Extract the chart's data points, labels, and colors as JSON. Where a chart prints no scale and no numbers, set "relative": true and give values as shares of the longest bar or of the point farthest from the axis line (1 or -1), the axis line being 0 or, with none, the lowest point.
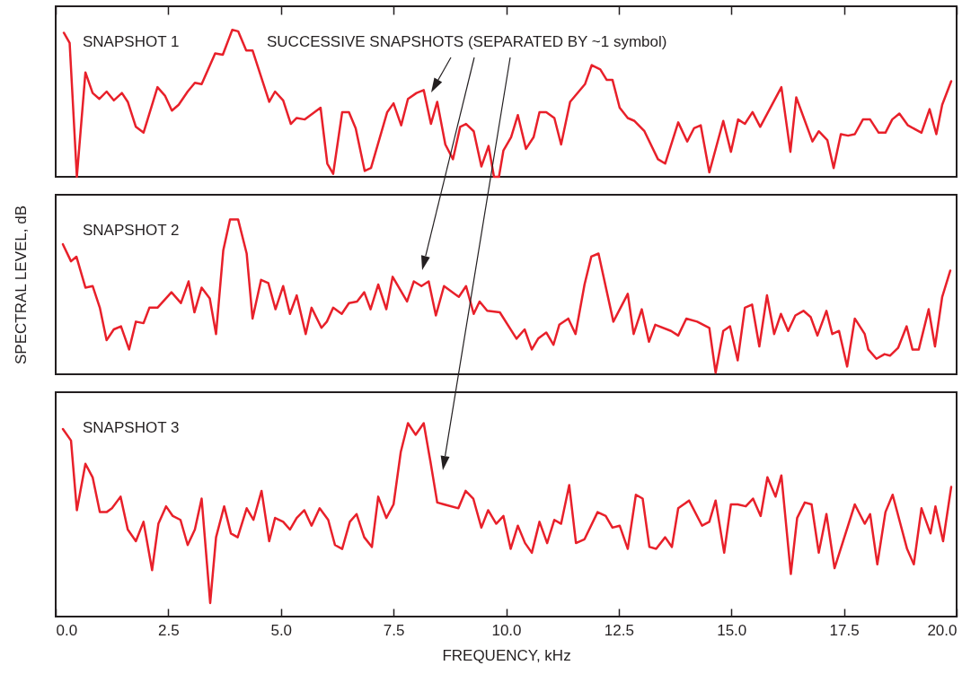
{
  "chart_data": [
    {
      "type": "line",
      "relative": true,
      "xlim": [
        0,
        20
      ],
      "xticks": [
        0,
        2.5,
        5,
        7.5,
        10,
        12.5,
        15,
        17.5,
        20
      ],
      "tick_labels": false,
      "annotations": [
        "SNAPSHOT 1",
        "SUCCESSIVE SNAPSHOTS (SEPARATED BY ~1 symbol)"
      ],
      "series": [
        {
          "color": "#e8202a",
          "x": [
            0.18,
            0.31,
            0.47,
            0.66,
            0.82,
            0.97,
            1.13,
            1.29,
            1.47,
            1.6,
            1.78,
            1.95,
            2.26,
            2.43,
            2.58,
            2.73,
            2.93,
            3.09,
            3.24,
            3.54,
            3.71,
            3.92,
            4.05,
            4.23,
            4.37,
            4.74,
            4.87,
            5.05,
            5.22,
            5.35,
            5.53,
            5.88,
            6.03,
            6.16,
            6.36,
            6.51,
            6.66,
            6.86,
            7.0,
            7.36,
            7.5,
            7.67,
            7.82,
            8.01,
            8.17,
            8.33,
            8.47,
            8.65,
            8.82,
            8.98,
            9.11,
            9.28,
            9.45,
            9.61,
            9.73,
            9.84,
            9.94,
            10.11,
            10.26,
            10.44,
            10.61,
            10.74,
            10.89,
            11.07,
            11.22,
            11.42,
            11.75,
            11.9,
            12.09,
            12.23,
            12.36,
            12.52,
            12.7,
            12.85,
            13.07,
            13.37,
            13.53,
            13.82,
            14.02,
            14.17,
            14.32,
            14.51,
            14.82,
            14.99,
            15.15,
            15.3,
            15.47,
            15.64,
            16.11,
            16.31,
            16.44,
            16.8,
            16.94,
            17.13,
            17.27,
            17.43,
            17.59,
            17.74,
            17.92,
            18.08,
            18.27,
            18.42,
            18.57,
            18.73,
            18.92,
            19.22,
            19.4,
            19.55,
            19.68,
            19.88
          ],
          "values": [
            0.98,
            0.91,
            0,
            0.71,
            0.57,
            0.53,
            0.58,
            0.52,
            0.57,
            0.51,
            0.34,
            0.3,
            0.61,
            0.55,
            0.45,
            0.49,
            0.58,
            0.64,
            0.63,
            0.84,
            0.83,
            1.0,
            0.99,
            0.86,
            0.86,
            0.51,
            0.58,
            0.52,
            0.36,
            0.4,
            0.39,
            0.47,
            0.09,
            0.02,
            0.44,
            0.44,
            0.33,
            0.04,
            0.06,
            0.44,
            0.5,
            0.35,
            0.53,
            0.57,
            0.59,
            0.36,
            0.51,
            0.22,
            0.12,
            0.34,
            0.36,
            0.31,
            0.07,
            0.21,
            0,
            0,
            0.18,
            0.27,
            0.42,
            0.19,
            0.27,
            0.44,
            0.44,
            0.4,
            0.22,
            0.51,
            0.63,
            0.76,
            0.73,
            0.66,
            0.66,
            0.47,
            0.4,
            0.38,
            0.31,
            0.12,
            0.09,
            0.37,
            0.24,
            0.33,
            0.35,
            0.03,
            0.38,
            0.17,
            0.39,
            0.36,
            0.44,
            0.34,
            0.61,
            0.17,
            0.54,
            0.24,
            0.31,
            0.25,
            0.06,
            0.29,
            0.28,
            0.29,
            0.39,
            0.39,
            0.3,
            0.3,
            0.39,
            0.43,
            0.35,
            0.3,
            0.46,
            0.29,
            0.49,
            0.65
          ]
        }
      ]
    },
    {
      "type": "line",
      "relative": true,
      "ylabel": "SPECTRAL LEVEL, dB",
      "xlim": [
        0,
        20
      ],
      "tick_labels": false,
      "annotations": [
        "SNAPSHOT 2"
      ],
      "series": [
        {
          "color": "#e8202a",
          "x": [
            0.16,
            0.34,
            0.46,
            0.66,
            0.82,
            0.98,
            1.13,
            1.29,
            1.45,
            1.63,
            1.78,
            1.95,
            2.08,
            2.26,
            2.57,
            2.78,
            2.95,
            3.08,
            3.24,
            3.42,
            3.56,
            3.72,
            3.87,
            4.05,
            4.24,
            4.37,
            4.56,
            4.72,
            4.88,
            5.05,
            5.2,
            5.35,
            5.55,
            5.68,
            5.9,
            6.02,
            6.16,
            6.35,
            6.51,
            6.69,
            6.85,
            6.99,
            7.16,
            7.34,
            7.48,
            7.8,
            7.95,
            8.12,
            8.28,
            8.44,
            8.62,
            8.95,
            9.11,
            9.28,
            9.41,
            9.58,
            9.86,
            10.23,
            10.41,
            10.57,
            10.71,
            10.89,
            11.05,
            11.18,
            11.38,
            11.54,
            11.74,
            11.89,
            12.05,
            12.38,
            12.7,
            12.83,
            13.01,
            13.17,
            13.31,
            13.66,
            13.82,
            14.0,
            14.24,
            14.51,
            14.65,
            14.82,
            14.97,
            15.14,
            15.3,
            15.46,
            15.62,
            15.79,
            15.95,
            16.1,
            16.26,
            16.42,
            16.6,
            16.76,
            16.91,
            17.11,
            17.24,
            17.39,
            17.57,
            17.74,
            17.96,
            18.04,
            18.22,
            18.4,
            18.52,
            18.7,
            18.89,
            19.02,
            19.16,
            19.38,
            19.52,
            19.68,
            19.86
          ],
          "values": [
            0.84,
            0.73,
            0.76,
            0.56,
            0.57,
            0.43,
            0.22,
            0.29,
            0.31,
            0.16,
            0.34,
            0.33,
            0.43,
            0.43,
            0.53,
            0.46,
            0.6,
            0.4,
            0.56,
            0.49,
            0.26,
            0.8,
            1.0,
            1.0,
            0.78,
            0.36,
            0.61,
            0.59,
            0.42,
            0.57,
            0.39,
            0.51,
            0.26,
            0.43,
            0.3,
            0.34,
            0.43,
            0.39,
            0.46,
            0.47,
            0.53,
            0.42,
            0.58,
            0.42,
            0.63,
            0.47,
            0.6,
            0.57,
            0.6,
            0.38,
            0.57,
            0.5,
            0.57,
            0.39,
            0.47,
            0.41,
            0.4,
            0.23,
            0.29,
            0.16,
            0.23,
            0.27,
            0.19,
            0.32,
            0.36,
            0.26,
            0.58,
            0.76,
            0.78,
            0.34,
            0.52,
            0.26,
            0.42,
            0.21,
            0.32,
            0.28,
            0.25,
            0.36,
            0.34,
            0.3,
            0.01,
            0.28,
            0.31,
            0.09,
            0.43,
            0.45,
            0.18,
            0.51,
            0.26,
            0.39,
            0.28,
            0.38,
            0.41,
            0.37,
            0.25,
            0.41,
            0.26,
            0.28,
            0.05,
            0.36,
            0.26,
            0.16,
            0.1,
            0.13,
            0.12,
            0.17,
            0.31,
            0.16,
            0.16,
            0.42,
            0.18,
            0.5,
            0.67
          ]
        }
      ]
    },
    {
      "type": "line",
      "relative": true,
      "xlabel": "FREQUENCY, kHz",
      "xlim": [
        0,
        20
      ],
      "xticks": [
        {
          "value": 0,
          "label": "0.0"
        },
        2.5,
        {
          "value": 5,
          "label": "5.0"
        },
        7.5,
        {
          "value": 10,
          "label": "10.0"
        },
        12.5,
        {
          "value": 15,
          "label": "15.0"
        },
        17.5,
        {
          "value": 20,
          "label": "20.0"
        }
      ],
      "tick_labels": "x",
      "annotations": [
        "SNAPSHOT 3"
      ],
      "series": [
        {
          "color": "#e8202a",
          "x": [
            0.16,
            0.34,
            0.47,
            0.66,
            0.82,
            0.98,
            1.13,
            1.25,
            1.44,
            1.6,
            1.78,
            1.95,
            2.14,
            2.28,
            2.45,
            2.6,
            2.77,
            2.93,
            3.09,
            3.24,
            3.43,
            3.56,
            3.74,
            3.89,
            4.04,
            4.24,
            4.39,
            4.57,
            4.74,
            4.87,
            5.05,
            5.2,
            5.35,
            5.52,
            5.68,
            5.86,
            6.05,
            6.2,
            6.36,
            6.53,
            6.68,
            6.85,
            7.02,
            7.16,
            7.34,
            7.5,
            7.66,
            7.82,
            7.99,
            8.17,
            8.32,
            8.47,
            8.62,
            8.94,
            9.1,
            9.27,
            9.45,
            9.6,
            9.78,
            9.94,
            10.1,
            10.26,
            10.42,
            10.57,
            10.74,
            10.91,
            11.07,
            11.22,
            11.4,
            11.55,
            11.74,
            12.03,
            12.21,
            12.36,
            12.52,
            12.7,
            12.88,
            13.03,
            13.18,
            13.33,
            13.53,
            13.68,
            13.82,
            14.06,
            14.35,
            14.51,
            14.65,
            14.84,
            14.99,
            15.14,
            15.32,
            15.48,
            15.65,
            15.8,
            15.98,
            16.11,
            16.32,
            16.46,
            16.63,
            16.78,
            16.94,
            17.11,
            17.29,
            17.74,
            17.96,
            18.08,
            18.24,
            18.42,
            18.58,
            18.9,
            19.05,
            19.22,
            19.42,
            19.53,
            19.7,
            19.88
          ],
          "values": [
            0.97,
            0.91,
            0.55,
            0.79,
            0.72,
            0.54,
            0.54,
            0.56,
            0.62,
            0.45,
            0.39,
            0.49,
            0.24,
            0.48,
            0.57,
            0.52,
            0.5,
            0.37,
            0.45,
            0.61,
            0.07,
            0.41,
            0.57,
            0.43,
            0.41,
            0.56,
            0.5,
            0.65,
            0.39,
            0.51,
            0.49,
            0.45,
            0.51,
            0.55,
            0.47,
            0.56,
            0.5,
            0.37,
            0.35,
            0.49,
            0.53,
            0.41,
            0.36,
            0.62,
            0.51,
            0.58,
            0.85,
            1.0,
            0.94,
            1.0,
            0.8,
            0.59,
            0.58,
            0.56,
            0.65,
            0.61,
            0.46,
            0.55,
            0.48,
            0.52,
            0.35,
            0.47,
            0.38,
            0.33,
            0.49,
            0.38,
            0.5,
            0.48,
            0.68,
            0.38,
            0.4,
            0.54,
            0.52,
            0.46,
            0.47,
            0.35,
            0.63,
            0.61,
            0.36,
            0.35,
            0.41,
            0.36,
            0.56,
            0.6,
            0.47,
            0.49,
            0.6,
            0.33,
            0.58,
            0.58,
            0.57,
            0.61,
            0.52,
            0.72,
            0.62,
            0.73,
            0.22,
            0.51,
            0.59,
            0.58,
            0.33,
            0.53,
            0.25,
            0.58,
            0.48,
            0.53,
            0.27,
            0.54,
            0.63,
            0.35,
            0.27,
            0.56,
            0.43,
            0.57,
            0.39,
            0.67
          ]
        }
      ]
    }
  ]
}
